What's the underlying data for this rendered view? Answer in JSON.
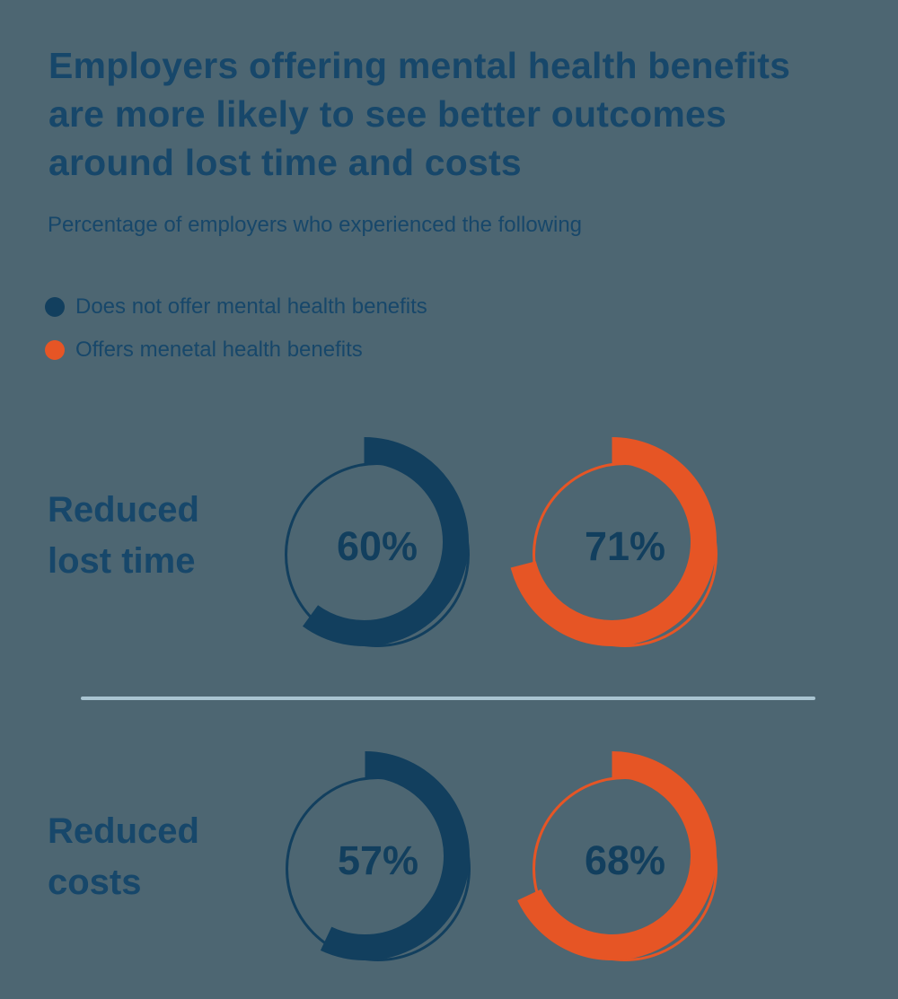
{
  "background_color": "#4D6672",
  "colors": {
    "navy": "#123F5E",
    "orange": "#E65525",
    "text_navy": "#17476A",
    "divider": "#A9C4D1"
  },
  "header": {
    "title_lines": [
      "Employers offering mental health benefits",
      "are more likely to see better outcomes",
      "around lost time and costs"
    ],
    "subtitle": "Percentage of employers who experienced the following"
  },
  "legend": {
    "items": [
      {
        "label": "Does not offer mental health benefits",
        "color": "#123F5E"
      },
      {
        "label": "Offers menetal health benefits",
        "color": "#E65525"
      }
    ]
  },
  "chart_data": {
    "type": "donut-grid",
    "title": "Employers offering mental health benefits are more likely to see better outcomes around lost time and costs",
    "subtitle": "Percentage of employers who experienced the following",
    "unit": "%",
    "value_range": [
      0,
      100
    ],
    "donut_start_angle_deg": 0,
    "donut_direction": "clockwise",
    "series": [
      {
        "name": "Does not offer mental health benefits",
        "color": "#123F5E"
      },
      {
        "name": "Offers menetal health benefits",
        "color": "#E65525"
      }
    ],
    "rows": [
      {
        "category": "Reduced lost time",
        "label_lines": [
          "Reduced",
          "lost time"
        ],
        "values": [
          60,
          71
        ]
      },
      {
        "category": "Reduced costs",
        "label_lines": [
          "Reduced",
          "costs"
        ],
        "values": [
          57,
          68
        ]
      }
    ]
  }
}
